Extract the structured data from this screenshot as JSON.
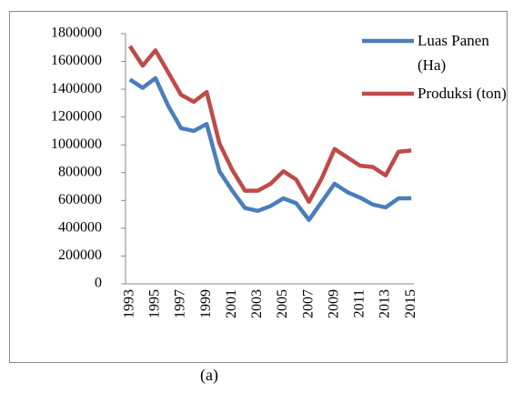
{
  "chart_data": {
    "type": "line",
    "x": [
      1993,
      1994,
      1995,
      1996,
      1997,
      1998,
      1999,
      2000,
      2001,
      2002,
      2003,
      2004,
      2005,
      2006,
      2007,
      2008,
      2009,
      2010,
      2011,
      2012,
      2013,
      2014,
      2015
    ],
    "series": [
      {
        "name": "Luas Panen (Ha)",
        "color": "#4a7ebb",
        "values": [
          1470000,
          1410000,
          1480000,
          1280000,
          1120000,
          1100000,
          1150000,
          810000,
          670000,
          545000,
          525000,
          560000,
          615000,
          580000,
          460000,
          590000,
          720000,
          660000,
          620000,
          570000,
          550000,
          615000,
          615000
        ]
      },
      {
        "name": "Produksi (ton)",
        "color": "#be4b48",
        "values": [
          1710000,
          1570000,
          1680000,
          1520000,
          1360000,
          1310000,
          1380000,
          1010000,
          820000,
          670000,
          670000,
          720000,
          810000,
          750000,
          590000,
          760000,
          970000,
          910000,
          850000,
          840000,
          780000,
          950000,
          960000
        ]
      }
    ],
    "xlim": [
      1992.8,
      2015.2
    ],
    "xticks": [
      1993,
      1995,
      1997,
      1999,
      2001,
      2003,
      2005,
      2007,
      2009,
      2011,
      2013,
      2015
    ],
    "ylim": [
      0,
      1800000
    ],
    "yticks": [
      0,
      200000,
      400000,
      600000,
      800000,
      1000000,
      1200000,
      1400000,
      1600000,
      1800000
    ],
    "grid": false,
    "legend": "right"
  },
  "caption": "(a)"
}
